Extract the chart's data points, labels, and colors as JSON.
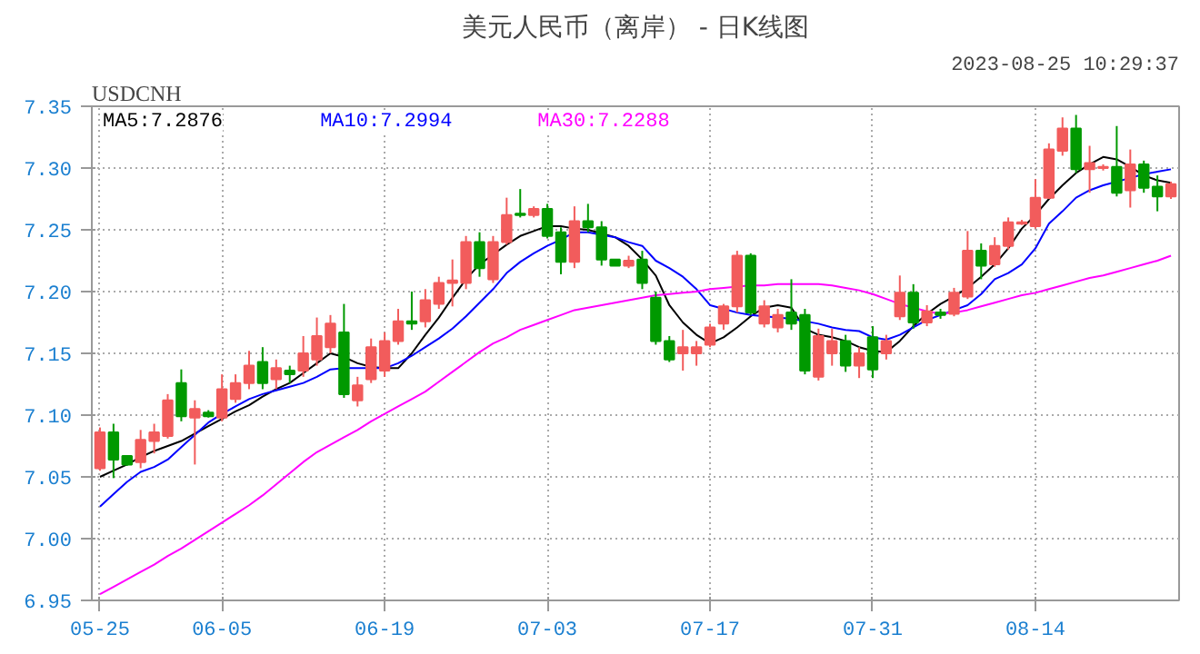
{
  "chart_data": {
    "type": "candlestick",
    "title": "美元人民币（离岸） - 日K线图",
    "subtitle": "USDCNH",
    "annotations": [
      "2023-08-25 10:29:37"
    ],
    "categories": [
      "05-25",
      null,
      null,
      null,
      null,
      null,
      null,
      null,
      null,
      "06-05",
      null,
      null,
      null,
      null,
      null,
      null,
      null,
      null,
      null,
      null,
      null,
      "06-19",
      null,
      null,
      null,
      null,
      null,
      null,
      null,
      null,
      null,
      null,
      null,
      "07-03",
      null,
      null,
      null,
      null,
      null,
      null,
      null,
      null,
      null,
      null,
      null,
      "07-17",
      null,
      null,
      null,
      null,
      null,
      null,
      null,
      null,
      null,
      null,
      null,
      "07-31",
      null,
      null,
      null,
      null,
      null,
      null,
      null,
      null,
      null,
      null,
      null,
      "08-14",
      null,
      null,
      null,
      null,
      null,
      null,
      null,
      null,
      null,
      null
    ],
    "ohlc": [
      [
        7.057,
        7.09,
        7.055,
        7.086
      ],
      [
        7.086,
        7.093,
        7.049,
        7.064
      ],
      [
        7.067,
        7.067,
        7.059,
        7.06
      ],
      [
        7.062,
        7.088,
        7.057,
        7.08
      ],
      [
        7.079,
        7.093,
        7.069,
        7.086
      ],
      [
        7.083,
        7.117,
        7.081,
        7.112
      ],
      [
        7.126,
        7.137,
        7.095,
        7.099
      ],
      [
        7.098,
        7.112,
        7.06,
        7.105
      ],
      [
        7.102,
        7.104,
        7.098,
        7.099
      ],
      [
        7.098,
        7.133,
        7.095,
        7.121
      ],
      [
        7.113,
        7.133,
        7.11,
        7.126
      ],
      [
        7.126,
        7.152,
        7.121,
        7.14
      ],
      [
        7.143,
        7.155,
        7.121,
        7.126
      ],
      [
        7.129,
        7.145,
        7.121,
        7.138
      ],
      [
        7.136,
        7.14,
        7.126,
        7.133
      ],
      [
        7.136,
        7.164,
        7.131,
        7.15
      ],
      [
        7.145,
        7.179,
        7.14,
        7.164
      ],
      [
        7.155,
        7.181,
        7.15,
        7.174
      ],
      [
        7.167,
        7.19,
        7.114,
        7.117
      ],
      [
        7.112,
        7.131,
        7.107,
        7.124
      ],
      [
        7.129,
        7.162,
        7.126,
        7.155
      ],
      [
        7.136,
        7.167,
        7.131,
        7.16
      ],
      [
        7.16,
        7.186,
        7.157,
        7.176
      ],
      [
        7.176,
        7.2,
        7.169,
        7.174
      ],
      [
        7.176,
        7.202,
        7.171,
        7.193
      ],
      [
        7.19,
        7.212,
        7.186,
        7.207
      ],
      [
        7.207,
        7.226,
        7.188,
        7.209
      ],
      [
        7.207,
        7.245,
        7.202,
        7.24
      ],
      [
        7.24,
        7.248,
        7.212,
        7.219
      ],
      [
        7.21,
        7.245,
        7.207,
        7.24
      ],
      [
        7.24,
        7.276,
        7.238,
        7.262
      ],
      [
        7.263,
        7.283,
        7.26,
        7.262
      ],
      [
        7.262,
        7.269,
        7.26,
        7.267
      ],
      [
        7.267,
        7.271,
        7.243,
        7.245
      ],
      [
        7.248,
        7.252,
        7.214,
        7.224
      ],
      [
        7.224,
        7.269,
        7.219,
        7.257
      ],
      [
        7.257,
        7.271,
        7.248,
        7.252
      ],
      [
        7.252,
        7.257,
        7.221,
        7.226
      ],
      [
        7.226,
        7.226,
        7.221,
        7.221
      ],
      [
        7.221,
        7.229,
        7.219,
        7.225
      ],
      [
        7.226,
        7.233,
        7.202,
        7.207
      ],
      [
        7.195,
        7.2,
        7.157,
        7.16
      ],
      [
        7.16,
        7.164,
        7.143,
        7.145
      ],
      [
        7.15,
        7.169,
        7.136,
        7.155
      ],
      [
        7.15,
        7.16,
        7.14,
        7.155
      ],
      [
        7.157,
        7.174,
        7.155,
        7.171
      ],
      [
        7.174,
        7.19,
        7.169,
        7.188
      ],
      [
        7.188,
        7.233,
        7.183,
        7.229
      ],
      [
        7.229,
        7.231,
        7.181,
        7.183
      ],
      [
        7.174,
        7.193,
        7.171,
        7.188
      ],
      [
        7.171,
        7.186,
        7.167,
        7.181
      ],
      [
        7.183,
        7.21,
        7.169,
        7.174
      ],
      [
        7.181,
        7.186,
        7.133,
        7.136
      ],
      [
        7.131,
        7.17,
        7.128,
        7.164
      ],
      [
        7.15,
        7.17,
        7.14,
        7.16
      ],
      [
        7.16,
        7.165,
        7.135,
        7.14
      ],
      [
        7.14,
        7.155,
        7.13,
        7.15
      ],
      [
        7.163,
        7.172,
        7.13,
        7.137
      ],
      [
        7.15,
        7.165,
        7.145,
        7.16
      ],
      [
        7.18,
        7.213,
        7.177,
        7.199
      ],
      [
        7.199,
        7.206,
        7.17,
        7.175
      ],
      [
        7.175,
        7.189,
        7.172,
        7.184
      ],
      [
        7.183,
        7.186,
        7.178,
        7.181
      ],
      [
        7.182,
        7.203,
        7.18,
        7.199
      ],
      [
        7.196,
        7.249,
        7.194,
        7.233
      ],
      [
        7.233,
        7.239,
        7.21,
        7.221
      ],
      [
        7.222,
        7.244,
        7.22,
        7.237
      ],
      [
        7.237,
        7.26,
        7.234,
        7.256
      ],
      [
        7.255,
        7.258,
        7.254,
        7.256
      ],
      [
        7.253,
        7.291,
        7.251,
        7.276
      ],
      [
        7.276,
        7.32,
        7.275,
        7.315
      ],
      [
        7.314,
        7.341,
        7.31,
        7.332
      ],
      [
        7.332,
        7.343,
        7.296,
        7.299
      ],
      [
        7.299,
        7.318,
        7.28,
        7.304
      ],
      [
        7.3,
        7.303,
        7.298,
        7.301
      ],
      [
        7.301,
        7.334,
        7.277,
        7.28
      ],
      [
        7.282,
        7.315,
        7.268,
        7.303
      ],
      [
        7.303,
        7.306,
        7.28,
        7.284
      ],
      [
        7.285,
        7.294,
        7.265,
        7.277
      ],
      [
        7.277,
        7.289,
        7.275,
        7.287
      ]
    ],
    "colors": [
      "#f25c5c",
      "#009900",
      "#009900",
      "#f25c5c",
      "#f25c5c",
      "#f25c5c",
      "#009900",
      "#f25c5c",
      "#009900",
      "#f25c5c",
      "#f25c5c",
      "#f25c5c",
      "#009900",
      "#f25c5c",
      "#009900",
      "#f25c5c",
      "#f25c5c",
      "#f25c5c",
      "#009900",
      "#f25c5c",
      "#f25c5c",
      "#f25c5c",
      "#f25c5c",
      "#009900",
      "#f25c5c",
      "#f25c5c",
      "#f25c5c",
      "#f25c5c",
      "#009900",
      "#f25c5c",
      "#f25c5c",
      "#009900",
      "#f25c5c",
      "#009900",
      "#009900",
      "#f25c5c",
      "#009900",
      "#009900",
      "#009900",
      "#f25c5c",
      "#009900",
      "#009900",
      "#009900",
      "#f25c5c",
      "#f25c5c",
      "#f25c5c",
      "#f25c5c",
      "#f25c5c",
      "#009900",
      "#f25c5c",
      "#f25c5c",
      "#009900",
      "#009900",
      "#f25c5c",
      "#f25c5c",
      "#009900",
      "#f25c5c",
      "#009900",
      "#f25c5c",
      "#f25c5c",
      "#009900",
      "#f25c5c",
      "#009900",
      "#f25c5c",
      "#f25c5c",
      "#009900",
      "#f25c5c",
      "#f25c5c",
      "#f25c5c",
      "#f25c5c",
      "#f25c5c",
      "#f25c5c",
      "#009900",
      "#f25c5c",
      "#f25c5c",
      "#009900",
      "#f25c5c",
      "#009900",
      "#009900",
      "#f25c5c"
    ],
    "series": [
      {
        "type": "line",
        "name": "MA5:7.2876",
        "color": "#000000",
        "values": [
          7.05,
          7.055,
          7.06,
          7.066,
          7.071,
          7.075,
          7.079,
          7.085,
          7.091,
          7.097,
          7.103,
          7.108,
          7.115,
          7.121,
          7.126,
          7.134,
          7.142,
          7.15,
          7.147,
          7.142,
          7.139,
          7.138,
          7.138,
          7.15,
          7.165,
          7.179,
          7.195,
          7.21,
          7.222,
          7.23,
          7.238,
          7.245,
          7.249,
          7.253,
          7.253,
          7.251,
          7.25,
          7.247,
          7.244,
          7.237,
          7.226,
          7.213,
          7.189,
          7.175,
          7.165,
          7.158,
          7.163,
          7.171,
          7.18,
          7.187,
          7.189,
          7.187,
          7.17,
          7.165,
          7.163,
          7.16,
          7.155,
          7.152,
          7.151,
          7.16,
          7.172,
          7.182,
          7.19,
          7.196,
          7.203,
          7.212,
          7.222,
          7.235,
          7.251,
          7.262,
          7.275,
          7.286,
          7.296,
          7.303,
          7.309,
          7.307,
          7.301,
          7.294,
          7.29,
          7.288
        ]
      },
      {
        "type": "line",
        "name": "MA10:7.2994",
        "color": "#0000ff",
        "values": [
          7.026,
          7.036,
          7.046,
          7.054,
          7.058,
          7.064,
          7.074,
          7.084,
          7.094,
          7.101,
          7.107,
          7.113,
          7.117,
          7.12,
          7.123,
          7.126,
          7.131,
          7.137,
          7.138,
          7.138,
          7.138,
          7.138,
          7.142,
          7.148,
          7.155,
          7.162,
          7.17,
          7.18,
          7.191,
          7.202,
          7.215,
          7.224,
          7.231,
          7.237,
          7.242,
          7.248,
          7.248,
          7.246,
          7.244,
          7.24,
          7.237,
          7.225,
          7.219,
          7.212,
          7.202,
          7.189,
          7.186,
          7.183,
          7.181,
          7.18,
          7.179,
          7.178,
          7.176,
          7.174,
          7.171,
          7.169,
          7.168,
          7.163,
          7.161,
          7.165,
          7.171,
          7.177,
          7.181,
          7.185,
          7.189,
          7.198,
          7.21,
          7.215,
          7.222,
          7.235,
          7.255,
          7.265,
          7.276,
          7.282,
          7.286,
          7.289,
          7.292,
          7.295,
          7.297,
          7.299
        ]
      },
      {
        "type": "line",
        "name": "MA30:7.2288",
        "color": "#ff00ff",
        "values": [
          6.955,
          6.961,
          6.967,
          6.973,
          6.979,
          6.986,
          6.992,
          6.999,
          7.006,
          7.013,
          7.02,
          7.027,
          7.035,
          7.044,
          7.053,
          7.062,
          7.07,
          7.076,
          7.082,
          7.088,
          7.095,
          7.101,
          7.107,
          7.113,
          7.119,
          7.127,
          7.135,
          7.143,
          7.151,
          7.158,
          7.163,
          7.169,
          7.173,
          7.177,
          7.181,
          7.185,
          7.187,
          7.189,
          7.191,
          7.193,
          7.195,
          7.197,
          7.198,
          7.199,
          7.2,
          7.202,
          7.203,
          7.204,
          7.205,
          7.205,
          7.206,
          7.206,
          7.206,
          7.206,
          7.205,
          7.203,
          7.201,
          7.198,
          7.194,
          7.19,
          7.187,
          7.184,
          7.182,
          7.183,
          7.185,
          7.188,
          7.191,
          7.194,
          7.197,
          7.199,
          7.202,
          7.205,
          7.208,
          7.211,
          7.213,
          7.216,
          7.219,
          7.222,
          7.225,
          7.229
        ]
      }
    ],
    "ylim": [
      6.95,
      7.35
    ],
    "yticks": [
      {
        "value": 6.95,
        "label": "6.95"
      },
      {
        "value": 7.0,
        "label": "7.00"
      },
      {
        "value": 7.05,
        "label": "7.05"
      },
      {
        "value": 7.1,
        "label": "7.10"
      },
      {
        "value": 7.15,
        "label": "7.15"
      },
      {
        "value": 7.2,
        "label": "7.20"
      },
      {
        "value": 7.25,
        "label": "7.25"
      },
      {
        "value": 7.3,
        "label": "7.30"
      },
      {
        "value": 7.35,
        "label": "7.35"
      }
    ],
    "grid": true,
    "legend": "top left"
  }
}
